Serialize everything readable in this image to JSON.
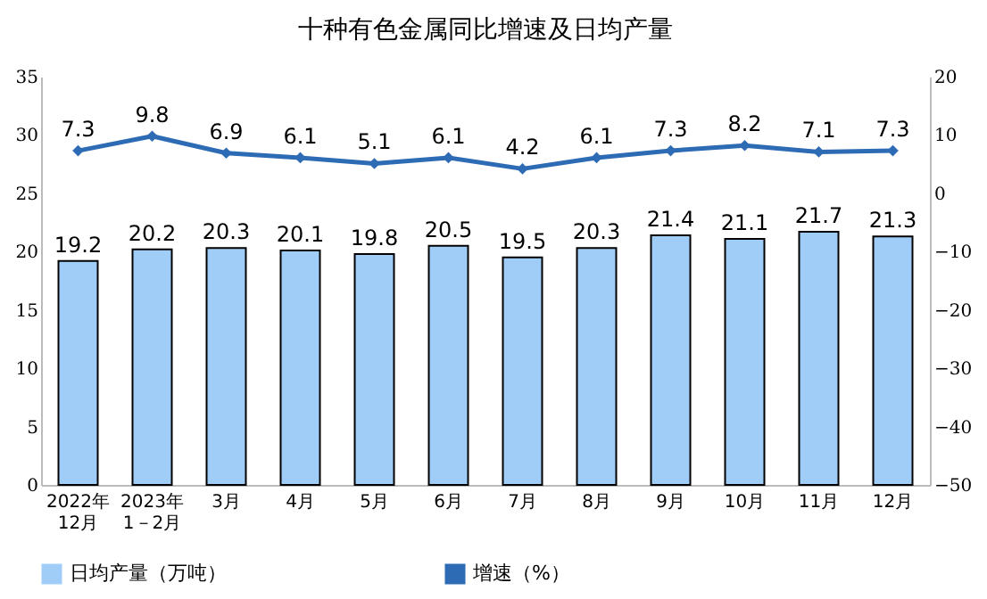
{
  "chart_data": {
    "type": "bar",
    "title": "十种有色金属同比增速及日均产量",
    "categories": [
      "2022年\n12月",
      "2023年\n1－2月",
      "3月",
      "4月",
      "5月",
      "6月",
      "7月",
      "8月",
      "9月",
      "10月",
      "11月",
      "12月"
    ],
    "series": [
      {
        "name": "日均产量（万吨）",
        "color": "#9fcdf7",
        "values": [
          19.2,
          20.2,
          20.3,
          20.1,
          19.8,
          20.5,
          19.5,
          20.3,
          21.4,
          21.1,
          21.7,
          21.3
        ]
      },
      {
        "name": "增速（%）",
        "type": "line",
        "axis": "y2",
        "color": "#2e6bb5",
        "marker": "diamond",
        "values": [
          7.3,
          9.8,
          6.9,
          6.1,
          5.1,
          6.1,
          4.2,
          6.1,
          7.3,
          8.2,
          7.1,
          7.3
        ]
      }
    ],
    "ylim": [
      0,
      35
    ],
    "yticks": [
      0,
      5,
      10,
      15,
      20,
      25,
      30,
      35
    ],
    "y2lim": [
      -50,
      20
    ],
    "y2ticks": [
      -50,
      -40,
      -30,
      -20,
      -10,
      0,
      10,
      20
    ],
    "data_labels": true,
    "grid": false,
    "legend": "bottom"
  }
}
